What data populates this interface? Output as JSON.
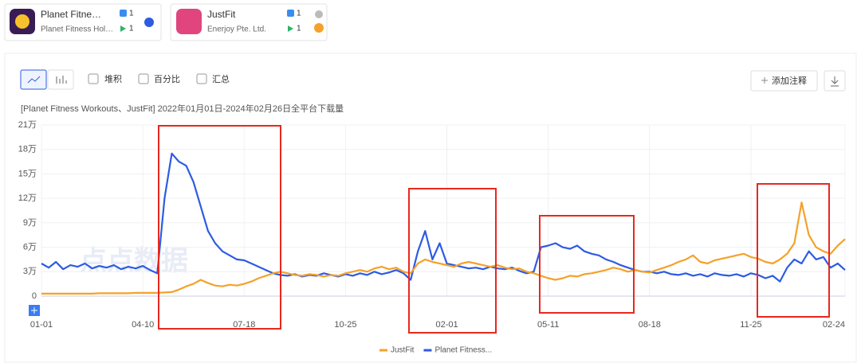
{
  "apps": [
    {
      "name": "Planet Fitne…",
      "publisher": "Planet Fitness Hol…",
      "ios_rank": 1,
      "android_rank": 1
    },
    {
      "name": "JustFit",
      "publisher": "Enerjoy Pte. Ltd.",
      "ios_rank": 1,
      "android_rank": 1
    }
  ],
  "toolbar": {
    "options": [
      "堆积",
      "百分比",
      "汇总"
    ],
    "add_note": "添加注释"
  },
  "watermark": "点点数据",
  "chart_data": {
    "type": "line",
    "subtitle": "[Planet Fitness Workouts、JustFit]  2022年01月01日-2024年02月26日全平台下载量",
    "categories": [
      "01-01",
      null,
      null,
      null,
      null,
      null,
      null,
      null,
      null,
      null,
      null,
      null,
      null,
      null,
      "04-10",
      null,
      null,
      null,
      null,
      null,
      null,
      null,
      null,
      null,
      null,
      null,
      null,
      null,
      "07-18",
      null,
      null,
      null,
      null,
      null,
      null,
      null,
      null,
      null,
      null,
      null,
      null,
      null,
      "10-25",
      null,
      null,
      null,
      null,
      null,
      null,
      null,
      null,
      null,
      null,
      null,
      null,
      null,
      "02-01",
      null,
      null,
      null,
      null,
      null,
      null,
      null,
      null,
      null,
      null,
      null,
      null,
      null,
      "05-11",
      null,
      null,
      null,
      null,
      null,
      null,
      null,
      null,
      null,
      null,
      null,
      null,
      null,
      "08-18",
      null,
      null,
      null,
      null,
      null,
      null,
      null,
      null,
      null,
      null,
      null,
      null,
      null,
      "11-25",
      null,
      null,
      null,
      null,
      null,
      null,
      null,
      null,
      null,
      null,
      null,
      null,
      "02-24"
    ],
    "series": [
      {
        "name": "JustFit",
        "color": "#f5a12a",
        "values": [
          3000,
          3000,
          3000,
          3000,
          3000,
          3000,
          3000,
          3000,
          3500,
          3500,
          3500,
          3500,
          3500,
          4000,
          4000,
          4000,
          4000,
          4500,
          5000,
          8000,
          12000,
          15000,
          20000,
          16000,
          13000,
          12000,
          14000,
          13000,
          15000,
          18000,
          22000,
          25000,
          28000,
          30000,
          28000,
          26000,
          25000,
          27000,
          26000,
          24000,
          26000,
          25000,
          28000,
          30000,
          32000,
          30000,
          34000,
          36000,
          33000,
          35000,
          30000,
          28000,
          40000,
          45000,
          42000,
          40000,
          38000,
          36000,
          40000,
          42000,
          40000,
          38000,
          36000,
          38000,
          35000,
          33000,
          34000,
          30000,
          28000,
          25000,
          22000,
          20000,
          22000,
          25000,
          24000,
          27000,
          28000,
          30000,
          32000,
          35000,
          33000,
          30000,
          32000,
          30000,
          29000,
          32000,
          35000,
          38000,
          42000,
          45000,
          50000,
          42000,
          40000,
          44000,
          46000,
          48000,
          50000,
          52000,
          48000,
          46000,
          42000,
          40000,
          45000,
          52000,
          65000,
          115000,
          75000,
          60000,
          55000,
          52000,
          62000,
          70000
        ]
      },
      {
        "name": "Planet Fitness...",
        "color": "#2d5be3",
        "values": [
          40000,
          35000,
          42000,
          33000,
          38000,
          36000,
          40000,
          34000,
          37000,
          35000,
          38000,
          33000,
          36000,
          34000,
          37000,
          32000,
          28000,
          120000,
          175000,
          165000,
          160000,
          140000,
          110000,
          80000,
          65000,
          55000,
          50000,
          45000,
          44000,
          40000,
          36000,
          32000,
          28000,
          26000,
          25000,
          27000,
          24000,
          26000,
          25000,
          28000,
          26000,
          24000,
          27000,
          25000,
          28000,
          26000,
          30000,
          27000,
          29000,
          32000,
          28000,
          20000,
          55000,
          80000,
          45000,
          65000,
          40000,
          38000,
          36000,
          34000,
          35000,
          33000,
          36000,
          34000,
          33000,
          35000,
          31000,
          28000,
          30000,
          60000,
          62000,
          65000,
          60000,
          58000,
          62000,
          55000,
          52000,
          50000,
          45000,
          42000,
          38000,
          35000,
          32000,
          30000,
          30000,
          28000,
          30000,
          27000,
          26000,
          28000,
          25000,
          27000,
          24000,
          28000,
          26000,
          25000,
          27000,
          24000,
          28000,
          26000,
          22000,
          25000,
          18000,
          35000,
          45000,
          40000,
          55000,
          45000,
          48000,
          35000,
          40000,
          32000
        ]
      }
    ],
    "ylim": [
      0,
      210000
    ],
    "yticks": [
      0,
      {
        "value": 30000,
        "label": "3万"
      },
      {
        "value": 60000,
        "label": "6万"
      },
      {
        "value": 90000,
        "label": "9万"
      },
      {
        "value": 120000,
        "label": "12万"
      },
      {
        "value": 150000,
        "label": "15万"
      },
      {
        "value": 180000,
        "label": "18万"
      },
      {
        "value": 210000,
        "label": "21万"
      }
    ],
    "grid": true
  }
}
